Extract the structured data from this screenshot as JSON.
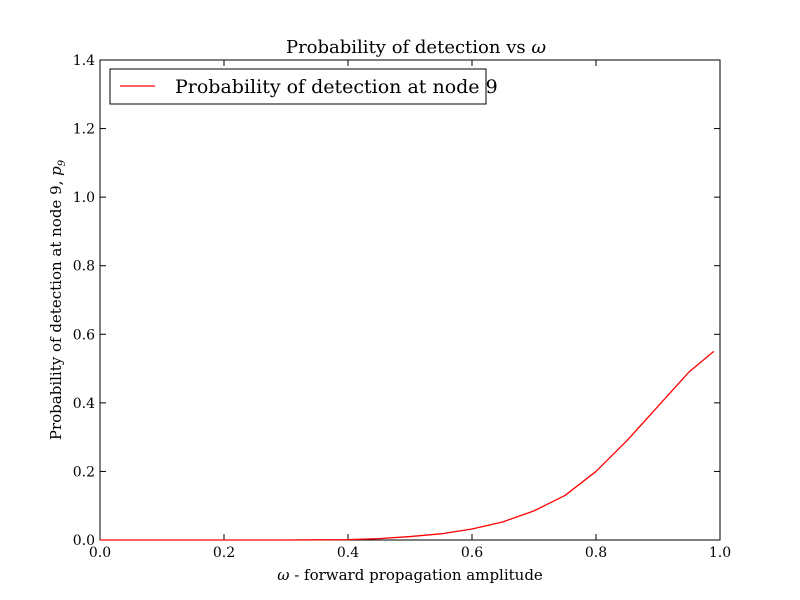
{
  "chart_data": {
    "type": "line",
    "title": "Probability of detection vs ω",
    "xlabel": "ω - forward propagation amplitude",
    "ylabel": "Probability of detection at node 9, p9",
    "xlim": [
      0.0,
      1.0
    ],
    "ylim": [
      0.0,
      1.4
    ],
    "xticks": [
      "0.0",
      "0.2",
      "0.4",
      "0.6",
      "0.8",
      "1.0"
    ],
    "yticks": [
      "0.0",
      "0.2",
      "0.4",
      "0.6",
      "0.8",
      "1.0",
      "1.2",
      "1.4"
    ],
    "grid": false,
    "legend_position": "top-left",
    "series": [
      {
        "name": "Probability of detection at node 9",
        "color": "#ff0000",
        "x": [
          0.0,
          0.1,
          0.2,
          0.3,
          0.35,
          0.4,
          0.45,
          0.5,
          0.55,
          0.6,
          0.65,
          0.7,
          0.75,
          0.8,
          0.85,
          0.9,
          0.95,
          0.99
        ],
        "y": [
          0.0,
          0.0,
          0.0,
          0.0,
          0.0005,
          0.001,
          0.004,
          0.01,
          0.018,
          0.032,
          0.053,
          0.085,
          0.13,
          0.2,
          0.29,
          0.39,
          0.49,
          0.55
        ]
      }
    ]
  }
}
